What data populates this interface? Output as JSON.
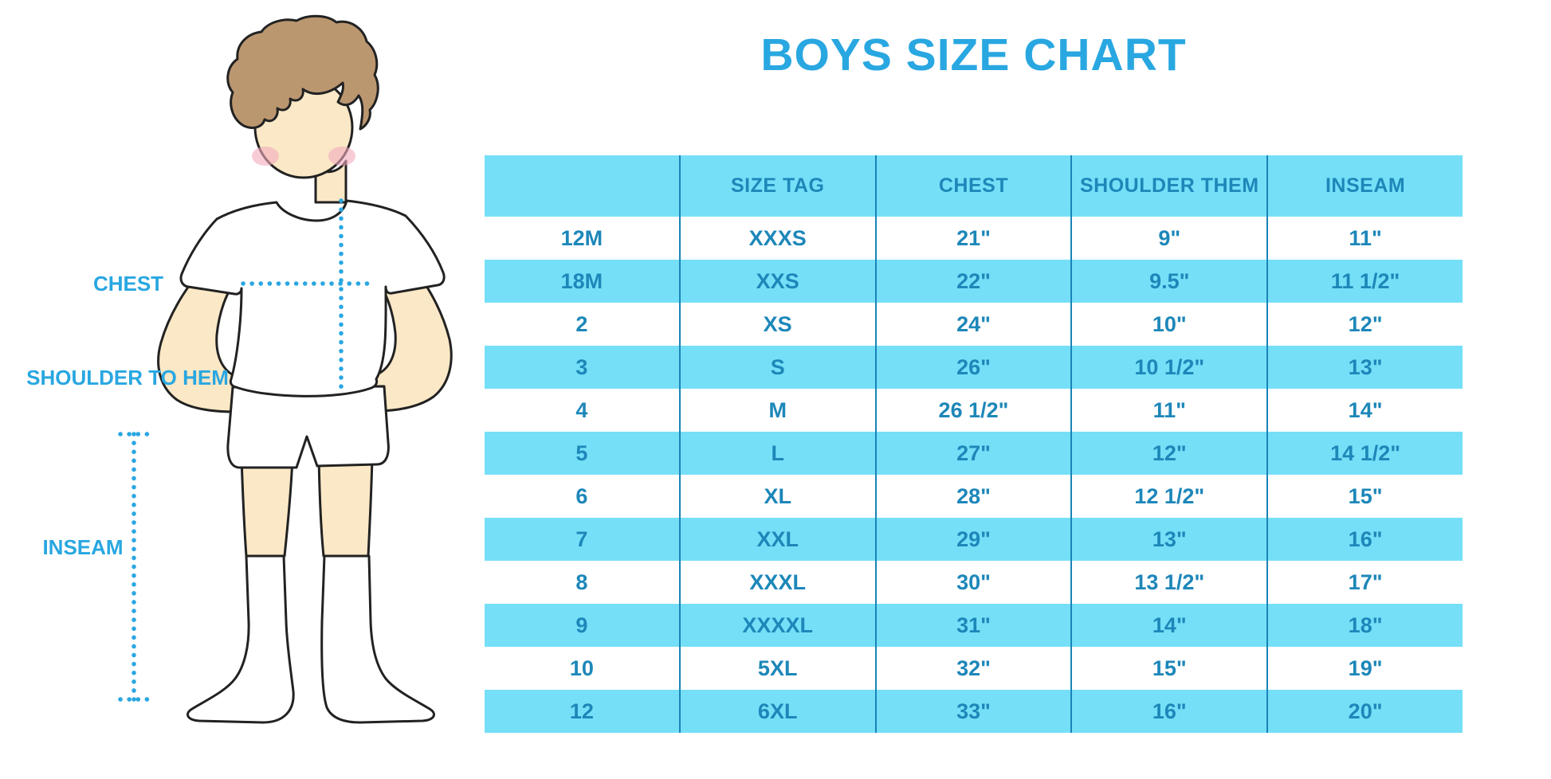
{
  "title": "BOYS SIZE CHART",
  "measurement_labels": {
    "chest": "CHEST",
    "shoulder_to_hem": "SHOULDER TO HEM",
    "inseam": "INSEAM"
  },
  "chart_data": {
    "type": "table",
    "title": "BOYS SIZE CHART",
    "columns": [
      "",
      "SIZE TAG",
      "CHEST",
      "SHOULDER THEM",
      "INSEAM"
    ],
    "rows": [
      [
        "12M",
        "XXXS",
        "21\"",
        "9\"",
        "11\""
      ],
      [
        "18M",
        "XXS",
        "22\"",
        "9.5\"",
        "11 1/2\""
      ],
      [
        "2",
        "XS",
        "24\"",
        "10\"",
        "12\""
      ],
      [
        "3",
        "S",
        "26\"",
        "10 1/2\"",
        "13\""
      ],
      [
        "4",
        "M",
        "26 1/2\"",
        "11\"",
        "14\""
      ],
      [
        "5",
        "L",
        "27\"",
        "12\"",
        "14 1/2\""
      ],
      [
        "6",
        "XL",
        "28\"",
        "12 1/2\"",
        "15\""
      ],
      [
        "7",
        "XXL",
        "29\"",
        "13\"",
        "16\""
      ],
      [
        "8",
        "XXXL",
        "30\"",
        "13 1/2\"",
        "17\""
      ],
      [
        "9",
        "XXXXL",
        "31\"",
        "14\"",
        "18\""
      ],
      [
        "10",
        "5XL",
        "32\"",
        "15\"",
        "19\""
      ],
      [
        "12",
        "6XL",
        "33\"",
        "16\"",
        "20\""
      ]
    ],
    "row_shading": "alternating, header and even data rows cyan",
    "legend_position": "none",
    "grid": "vertical column separators only"
  },
  "colors": {
    "accent_blue": "#29a7e1",
    "row_fill_cyan": "#75dff8",
    "table_text_blue": "#1d87b9",
    "grid_line_blue": "#1884b8",
    "skin": "#fbe8c6",
    "hair_brown": "#bb9770",
    "cheek_pink": "#f2abbe",
    "outline": "#222222"
  }
}
